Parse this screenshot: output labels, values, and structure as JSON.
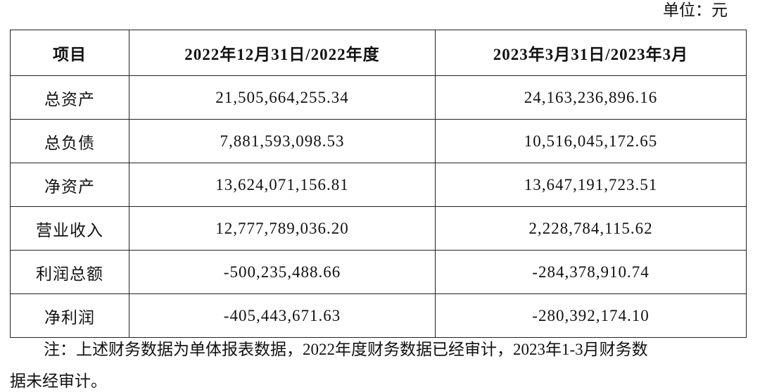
{
  "unit": "单位：元",
  "table": {
    "header": [
      "项目",
      "2022年12月31日/2022年度",
      "2023年3月31日/2023年3月"
    ],
    "rows": [
      [
        "总资产",
        "21,505,664,255.34",
        "24,163,236,896.16"
      ],
      [
        "总负债",
        "7,881,593,098.53",
        "10,516,045,172.65"
      ],
      [
        "净资产",
        "13,624,071,156.81",
        "13,647,191,723.51"
      ],
      [
        "营业收入",
        "12,777,789,036.20",
        "2,228,784,115.62"
      ],
      [
        "利润总额",
        "-500,235,488.66",
        "-284,378,910.74"
      ],
      [
        "净利润",
        "-405,443,671.63",
        "-280,392,174.10"
      ]
    ]
  },
  "note": [
    "注：上述财务数据为单体报表数据，2022年度财务数据已经审计，2023年1-3月财务数",
    "据未经审计。"
  ]
}
